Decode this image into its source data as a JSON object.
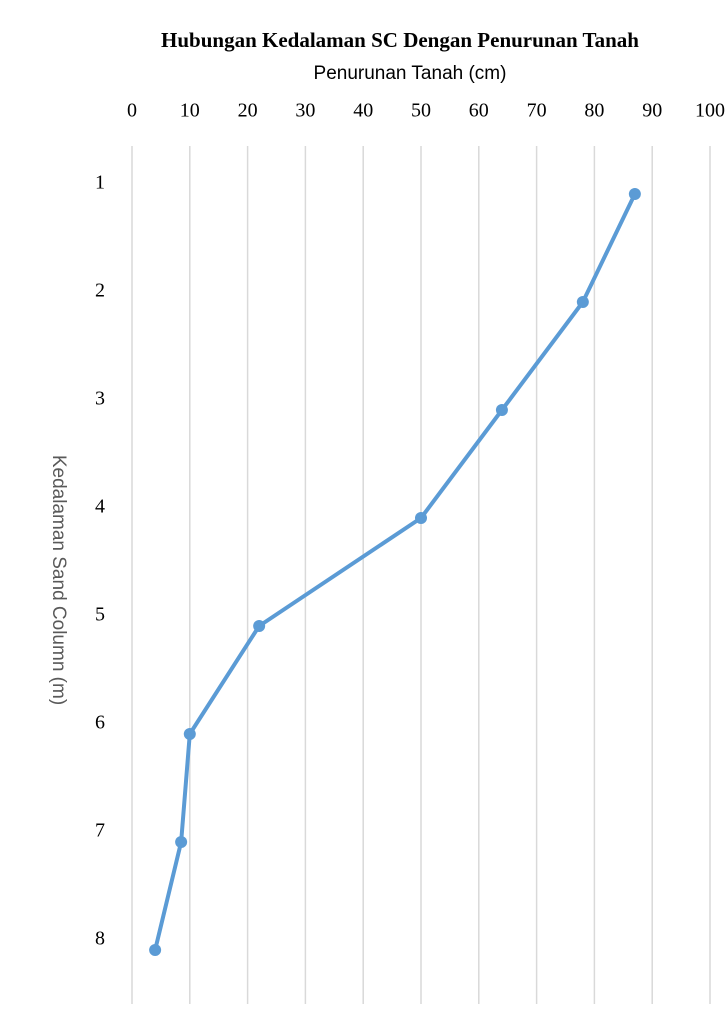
{
  "chart_data": {
    "type": "line",
    "orientation": "horizontal",
    "title": "Hubungan Kedalaman SC Dengan Penurunan Tanah",
    "x_label": "Penurunan Tanah (cm)",
    "y_label": "Kedalaman Sand Column (m)",
    "categories": [
      1,
      2,
      3,
      4,
      5,
      6,
      7,
      8
    ],
    "values": [
      87,
      78,
      64,
      50,
      22,
      10,
      8.5,
      4
    ],
    "color": "#5b9bd5",
    "xlim": [
      0,
      100
    ],
    "xticks": [
      0,
      10,
      20,
      30,
      40,
      50,
      60,
      70,
      80,
      90,
      100
    ],
    "grid": true
  }
}
